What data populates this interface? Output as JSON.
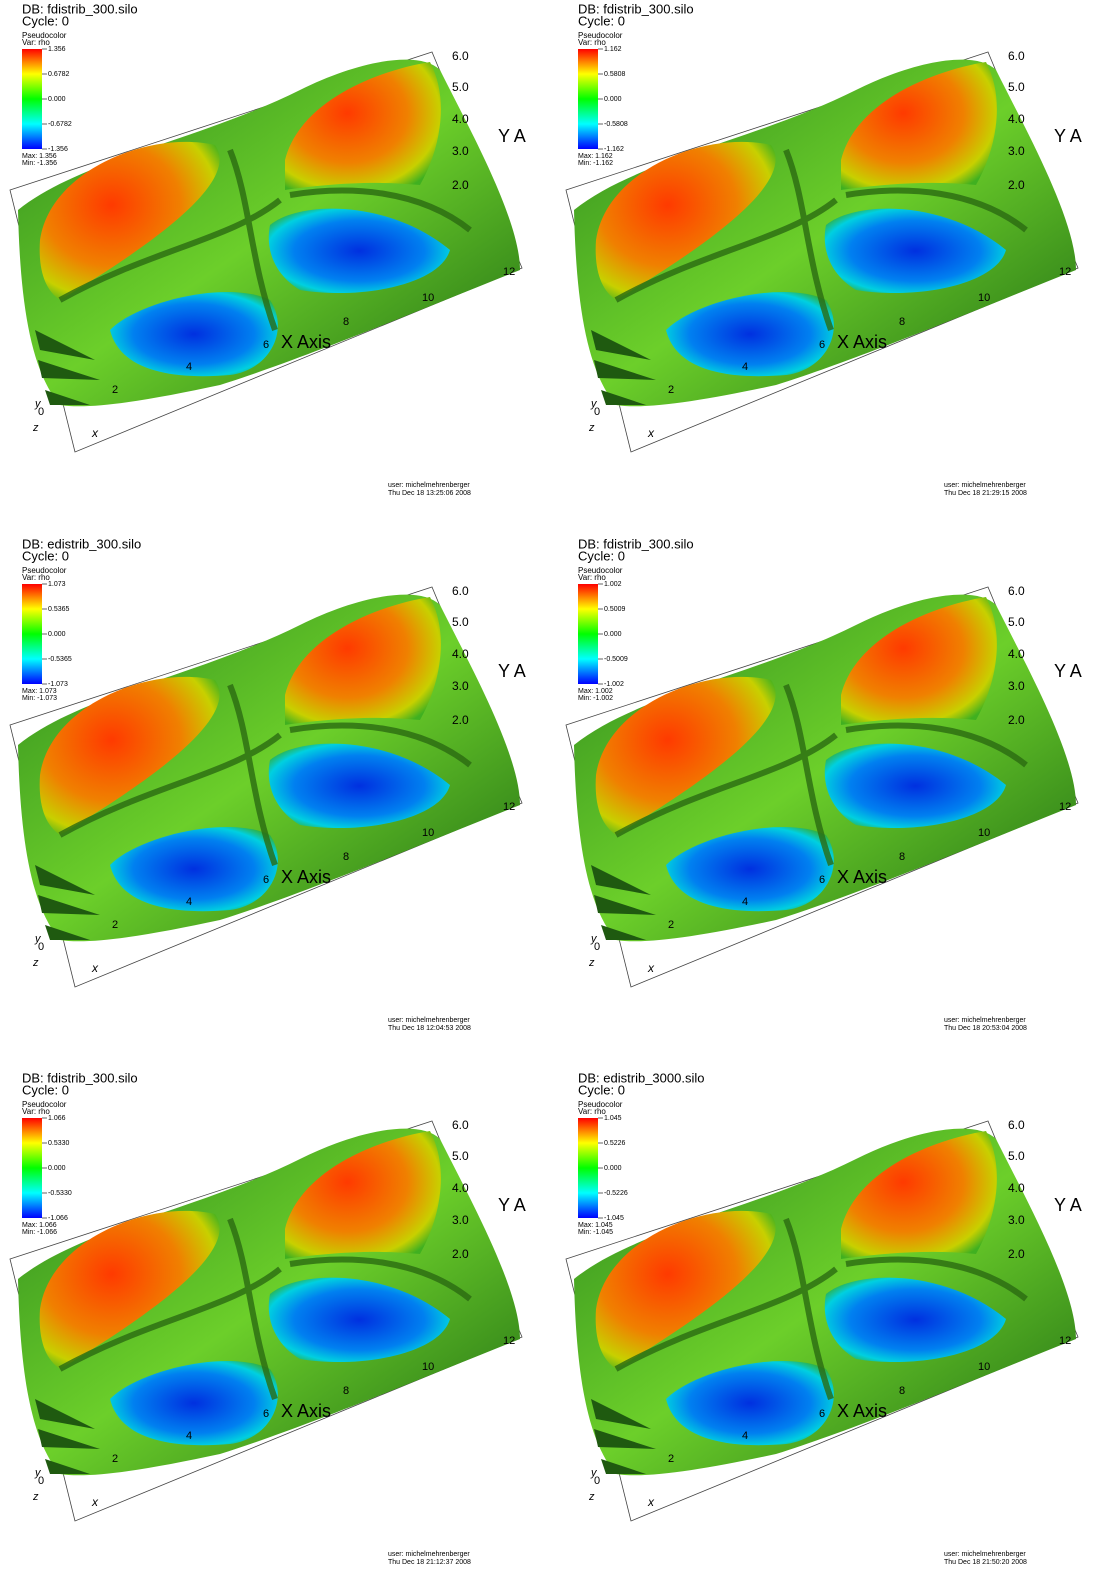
{
  "panels": [
    {
      "db": "DB: fdistrib_300.silo",
      "cycle": "Cycle: 0",
      "plot": "Pseudocolor",
      "var": "Var: rho",
      "legend": [
        "1.356",
        "0.6782",
        "0.000",
        "-0.6782",
        "-1.356"
      ],
      "max": "Max: 1.356",
      "min": "Min: -1.356",
      "user": "user: michelmehrenberger",
      "date": "Thu Dec 18 13:25:06 2008"
    },
    {
      "db": "DB: fdistrib_300.silo",
      "cycle": "Cycle: 0",
      "plot": "Pseudocolor",
      "var": "Var: rho",
      "legend": [
        "1.162",
        "0.5808",
        "0.000",
        "-0.5808",
        "-1.162"
      ],
      "max": "Max: 1.162",
      "min": "Min: -1.162",
      "user": "user: michelmehrenberger",
      "date": "Thu Dec 18 21:29:15 2008"
    },
    {
      "db": "DB: edistrib_300.silo",
      "cycle": "Cycle: 0",
      "plot": "Pseudocolor",
      "var": "Var: rho",
      "legend": [
        "1.073",
        "0.5365",
        "0.000",
        "-0.5365",
        "-1.073"
      ],
      "max": "Max: 1.073",
      "min": "Min: -1.073",
      "user": "user: michelmehrenberger",
      "date": "Thu Dec 18 12:04:53 2008"
    },
    {
      "db": "DB: fdistrib_300.silo",
      "cycle": "Cycle: 0",
      "plot": "Pseudocolor",
      "var": "Var: rho",
      "legend": [
        "1.002",
        "0.5009",
        "0.000",
        "-0.5009",
        "-1.002"
      ],
      "max": "Max: 1.002",
      "min": "Min: -1.002",
      "user": "user: michelmehrenberger",
      "date": "Thu Dec 18 20:53:04 2008"
    },
    {
      "db": "DB: fdistrib_300.silo",
      "cycle": "Cycle: 0",
      "plot": "Pseudocolor",
      "var": "Var: rho",
      "legend": [
        "1.066",
        "0.5330",
        "0.000",
        "-0.5330",
        "-1.066"
      ],
      "max": "Max: 1.066",
      "min": "Min: -1.066",
      "user": "user: michelmehrenberger",
      "date": "Thu Dec 18 21:12:37 2008"
    },
    {
      "db": "DB: edistrib_3000.silo",
      "cycle": "Cycle: 0",
      "plot": "Pseudocolor",
      "var": "Var: rho",
      "legend": [
        "1.045",
        "0.5226",
        "0.000",
        "-0.5226",
        "-1.045"
      ],
      "max": "Max: 1.045",
      "min": "Min: -1.045",
      "user": "user: michelmehrenberger",
      "date": "Thu Dec 18 21:50:20 2008"
    }
  ],
  "axes": {
    "y_ticks": [
      "6.0",
      "5.0",
      "4.0",
      "3.0",
      "2.0"
    ],
    "y_title": "Y A",
    "x_ticks": [
      "12",
      "10",
      "8",
      "6",
      "4",
      "2"
    ],
    "x_title": "X Axis",
    "x": "x",
    "y": "y",
    "z": "z",
    "origin": "0"
  }
}
